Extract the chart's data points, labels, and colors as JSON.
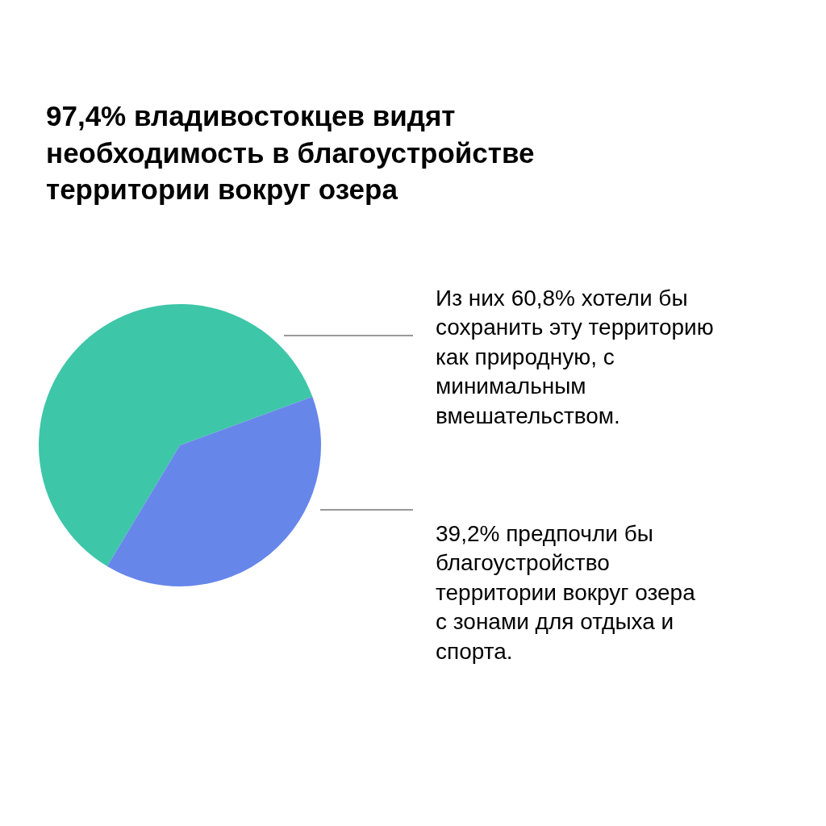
{
  "chart_data": {
    "type": "pie",
    "title": "97,4% владивостокцев видят необходимость в благоустройстве территории вокруг озера",
    "categories": [
      "Из них 60,8% хотели бы сохранить эту территорию как природную, с минимальным вмешательством.",
      "39,2% предпочли бы благоустройство территории вокруг озера с зонами для отдыха и спорта."
    ],
    "values": [
      60.8,
      39.2
    ],
    "colors": [
      "#3ec6a8",
      "#6786ea"
    ],
    "legend": false
  }
}
